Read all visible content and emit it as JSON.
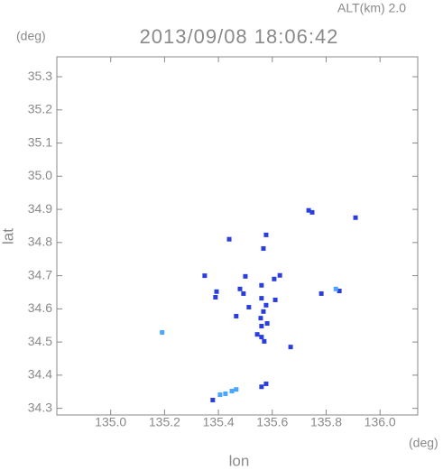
{
  "chart_data": {
    "type": "scatter",
    "title": "2013/09/08 18:06:42",
    "subtitle": "ALT(km) 2.0",
    "y_unit": "(deg)",
    "x_unit": "(deg)",
    "x_label": "lon",
    "y_label": "lat",
    "xlim": [
      134.8,
      136.14
    ],
    "ylim": [
      34.28,
      35.36
    ],
    "xticks": [
      {
        "value": 135,
        "label": "135.0"
      },
      135.2,
      135.4,
      135.6,
      135.8,
      {
        "value": 136,
        "label": "136.0"
      }
    ],
    "yticks": [
      34.3,
      34.4,
      34.5,
      34.6,
      34.7,
      34.8,
      34.9,
      {
        "value": 35,
        "label": "35.0"
      },
      35.1,
      35.2,
      35.3
    ],
    "series": [
      {
        "color": "#2a3ee0",
        "x": [
          135.735,
          135.748,
          135.909,
          135.577,
          135.567,
          135.44,
          135.628,
          135.607,
          135.5,
          135.349,
          135.393,
          135.389,
          135.48,
          135.493,
          135.56,
          135.56,
          135.611,
          135.782,
          135.849,
          135.513,
          135.577,
          135.567,
          135.466,
          135.557,
          135.581,
          135.56,
          135.544,
          135.56,
          135.57,
          135.668,
          135.56,
          135.577,
          135.379
        ],
        "y": [
          34.897,
          34.891,
          34.875,
          34.823,
          34.782,
          34.81,
          34.701,
          34.69,
          34.698,
          34.7,
          34.652,
          34.635,
          34.66,
          34.646,
          34.671,
          34.632,
          34.627,
          34.646,
          34.654,
          34.605,
          34.611,
          34.592,
          34.578,
          34.572,
          34.556,
          34.548,
          34.523,
          34.515,
          34.502,
          34.485,
          34.365,
          34.374,
          34.325
        ]
      },
      {
        "color": "#4aa6ff",
        "x": [
          135.836,
          135.191,
          135.466,
          135.45,
          135.426,
          135.406
        ],
        "y": [
          34.66,
          34.529,
          34.357,
          34.352,
          34.344,
          34.341
        ]
      }
    ]
  }
}
